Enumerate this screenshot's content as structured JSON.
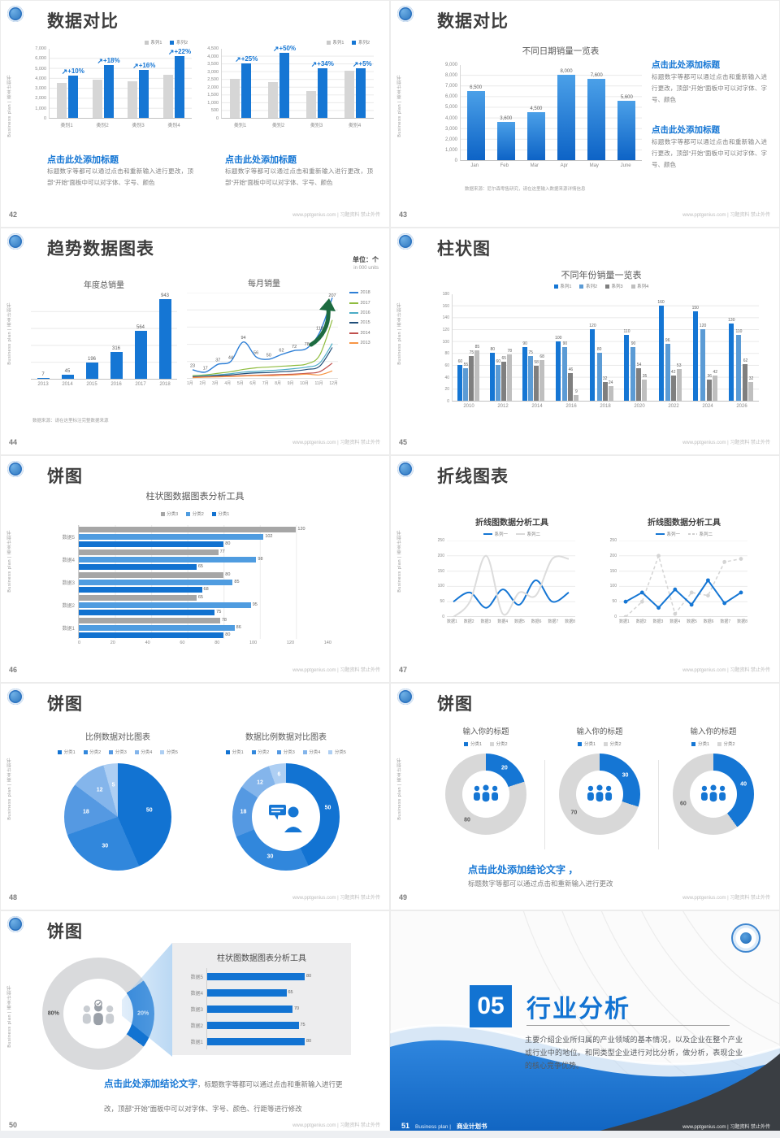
{
  "global": {
    "sidebar_text": "Business plan | 商业计划书",
    "footer_right": "www.pptgenius.com | 习题资料 禁止外传"
  },
  "s42": {
    "page": "42",
    "title": "数据对比",
    "legend": [
      {
        "label": "系列1",
        "color": "#c9c9c9",
        "type": "sq"
      },
      {
        "label": "系列2",
        "color": "#1576d4",
        "type": "sq"
      }
    ],
    "charts": [
      {
        "ymax": 7000,
        "yticks": [
          "7,000",
          "6,000",
          "5,000",
          "4,000",
          "3,000",
          "2,000",
          "1,000",
          "0"
        ],
        "categories": [
          "类别1",
          "类别2",
          "类别3",
          "类别4"
        ],
        "series": [
          {
            "name": "系列1",
            "color": "#d6d6d6",
            "values": [
              3500,
              3800,
              3700,
              4300
            ]
          },
          {
            "name": "系列2",
            "color": "#1576d4",
            "values": [
              4200,
              5300,
              4800,
              6200
            ]
          }
        ],
        "callouts": [
          "+10%",
          "+18%",
          "+16%",
          "+22%"
        ]
      },
      {
        "ymax": 4500,
        "yticks": [
          "4,500",
          "4,000",
          "3,500",
          "3,000",
          "2,500",
          "2,000",
          "1,500",
          "1,000",
          "500",
          "0"
        ],
        "categories": [
          "类别1",
          "类别2",
          "类别3",
          "类别4"
        ],
        "series": [
          {
            "name": "系列1",
            "color": "#d6d6d6",
            "values": [
              2500,
              2300,
              1750,
              3050
            ]
          },
          {
            "name": "系列2",
            "color": "#1576d4",
            "values": [
              3500,
              4200,
              3200,
              3200
            ]
          }
        ],
        "callouts": [
          "+25%",
          "+50%",
          "+34%",
          "+5%"
        ]
      }
    ],
    "blocks": [
      {
        "heading": "点击此处添加标题",
        "body": "标题数字等都可以通过点击和重新输入进行更改，顶部“开始”面板中可以对字体、字号、颜色"
      },
      {
        "heading": "点击此处添加标题",
        "body": "标题数字等都可以通过点击和重新输入进行更改，顶部“开始”面板中可以对字体、字号、颜色"
      }
    ]
  },
  "s43": {
    "page": "43",
    "title": "数据对比",
    "chart_title": "不同日期销量一览表",
    "chart": {
      "ymax": 9000,
      "yticks": [
        "9,000",
        "8,000",
        "7,000",
        "6,000",
        "5,000",
        "4,000",
        "3,000",
        "2,000",
        "1,000",
        "0"
      ],
      "categories": [
        "Jan",
        "Feb",
        "Mar",
        "Apr",
        "May",
        "June"
      ],
      "series": [
        {
          "name": "销量",
          "grad": [
            "#4ba0e8",
            "#0d63c6"
          ],
          "values": [
            6500,
            3600,
            4500,
            8000,
            7600,
            5600
          ],
          "labels": [
            "6,500",
            "3,600",
            "4,500",
            "8,000",
            "7,600",
            "5,600"
          ]
        }
      ]
    },
    "source": "数据来源：尼尔森零售研究，请在这里输入数据来源详情信息",
    "blocks": [
      {
        "heading": "点击此处添加标题",
        "body": "标题数字等都可以通过点击和重新输入进行更改，顶部“开始”面板中可以对字体、字号、颜色"
      },
      {
        "heading": "点击此处添加标题",
        "body": "标题数字等都可以通过点击和重新输入进行更改，顶部“开始”面板中可以对字体、字号、颜色"
      }
    ]
  },
  "s44": {
    "page": "44",
    "title": "趋势数据图表",
    "unit_cn": "单位：个",
    "unit_en": "in 000 units",
    "left": {
      "chart_title": "年度总销量",
      "chart": {
        "ymax": 1000,
        "categories": [
          "2013",
          "2014",
          "2015",
          "2016",
          "2017",
          "2018"
        ],
        "series": [
          {
            "name": "年度总销量",
            "color": "#1576d4",
            "values": [
              7,
              45,
              196,
              316,
              564,
              943
            ],
            "labels": [
              "7",
              "45",
              "196",
              "316",
              "564",
              "943"
            ]
          }
        ]
      }
    },
    "right": {
      "chart_title": "每月销量",
      "chart": {
        "ymax": 220,
        "xlabels": [
          "1月",
          "2月",
          "3月",
          "4月",
          "5月",
          "6月",
          "7月",
          "8月",
          "9月",
          "10月",
          "11月",
          "12月"
        ],
        "series": [
          {
            "name": "2018",
            "color": "#2e7fd6",
            "w": 1.4,
            "smooth": true,
            "values": [
              23,
              17,
              37,
              44,
              94,
              56,
              50,
              62,
              72,
              78,
              118,
              207
            ],
            "labels": [
              "23",
              "17",
              "37",
              "44",
              "94",
              "56",
              "50",
              "62",
              "72",
              "78",
              "118",
              "207"
            ]
          },
          {
            "name": "2017",
            "color": "#8fbc3f",
            "w": 1.2,
            "smooth": true,
            "values": [
              8,
              10,
              14,
              18,
              24,
              28,
              30,
              32,
              34,
              38,
              60,
              150
            ]
          },
          {
            "name": "2016",
            "color": "#4bacc6",
            "w": 1.2,
            "smooth": true,
            "values": [
              6,
              8,
              10,
              13,
              17,
              19,
              21,
              23,
              26,
              30,
              40,
              90
            ]
          },
          {
            "name": "2015",
            "color": "#1f4e79",
            "w": 1.2,
            "smooth": true,
            "values": [
              5,
              6,
              8,
              10,
              13,
              15,
              16,
              18,
              20,
              24,
              32,
              80
            ]
          },
          {
            "name": "2014",
            "color": "#c0504d",
            "w": 1.2,
            "smooth": true,
            "values": [
              4,
              5,
              6,
              7,
              8,
              9,
              10,
              11,
              12,
              14,
              18,
              40
            ]
          },
          {
            "name": "2013",
            "color": "#f79646",
            "w": 1.2,
            "smooth": true,
            "values": [
              3,
              4,
              5,
              6,
              7,
              8,
              8,
              9,
              10,
              12,
              10,
              20
            ]
          }
        ]
      },
      "legend": [
        {
          "label": "2018",
          "color": "#2e7fd6",
          "type": "line"
        },
        {
          "label": "2017",
          "color": "#8fbc3f",
          "type": "line"
        },
        {
          "label": "2016",
          "color": "#4bacc6",
          "type": "line"
        },
        {
          "label": "2015",
          "color": "#1f4e79",
          "type": "line"
        },
        {
          "label": "2014",
          "color": "#c0504d",
          "type": "line"
        },
        {
          "label": "2013",
          "color": "#f79646",
          "type": "line"
        }
      ]
    },
    "note": "数据来源：请在这里标注完整数据来源"
  },
  "s45": {
    "page": "45",
    "title": "柱状图",
    "chart_title": "不同年份销量一览表",
    "legend": [
      {
        "label": "系列1",
        "color": "#1576d4",
        "type": "sq"
      },
      {
        "label": "系列2",
        "color": "#5b9bd5",
        "type": "sq"
      },
      {
        "label": "系列3",
        "color": "#7f7f7f",
        "type": "sq"
      },
      {
        "label": "系列4",
        "color": "#bfbfbf",
        "type": "sq"
      }
    ],
    "chart": {
      "ymax": 180,
      "yticks": [
        "180",
        "160",
        "140",
        "120",
        "100",
        "80",
        "60",
        "40",
        "20",
        "0"
      ],
      "categories": [
        "2010",
        "2012",
        "2014",
        "2016",
        "2018",
        "2020",
        "2022",
        "2024",
        "2026"
      ],
      "series": [
        {
          "name": "系列1",
          "color": "#1576d4",
          "auto": true,
          "values": [
            60,
            80,
            90,
            100,
            120,
            110,
            160,
            150,
            130
          ]
        },
        {
          "name": "系列2",
          "color": "#5b9bd5",
          "auto": true,
          "values": [
            55,
            60,
            75,
            90,
            80,
            90,
            96,
            120,
            110
          ]
        },
        {
          "name": "系列3",
          "color": "#7f7f7f",
          "auto": true,
          "values": [
            75,
            65,
            58,
            46,
            32,
            54,
            42,
            36,
            62
          ]
        },
        {
          "name": "系列4",
          "color": "#bfbfbf",
          "auto": true,
          "values": [
            85,
            78,
            68,
            9,
            24,
            35,
            53,
            42,
            32
          ]
        }
      ]
    }
  },
  "s46": {
    "page": "46",
    "title": "饼图",
    "chart_title": "柱状图数据图表分析工具",
    "legend": [
      {
        "label": "分类3",
        "color": "#a6a6a6",
        "type": "sq"
      },
      {
        "label": "分类2",
        "color": "#4f9ce0",
        "type": "sq"
      },
      {
        "label": "分类1",
        "color": "#1272d0",
        "type": "sq"
      }
    ],
    "chart": {
      "xmax": 140,
      "xticks": [
        "0",
        "20",
        "40",
        "60",
        "80",
        "100",
        "120",
        "140"
      ],
      "categories": [
        "数据5",
        "数据4",
        "数据3",
        "数据2",
        "数据1"
      ],
      "series": [
        {
          "name": "分类3",
          "color": "#a6a6a6",
          "values": [
            120,
            77,
            80,
            65,
            78
          ]
        },
        {
          "name": "分类2",
          "color": "#4f9ce0",
          "values": [
            102,
            98,
            85,
            95,
            86
          ]
        },
        {
          "name": "分类1",
          "color": "#1272d0",
          "values": [
            80,
            65,
            68,
            75,
            80
          ]
        }
      ]
    }
  },
  "s47": {
    "page": "47",
    "title": "折线图表",
    "charts": [
      {
        "chart_title": "折线图数据分析工具",
        "legend": [
          {
            "label": "系列一",
            "color": "#1576d4",
            "type": "line"
          },
          {
            "label": "系列二",
            "color": "#d9d9d9",
            "type": "line"
          }
        ],
        "data": {
          "ymax": 250,
          "yticks": [
            "250",
            "200",
            "150",
            "100",
            "50",
            "0"
          ],
          "xlabels": [
            "数据1",
            "数据2",
            "数据3",
            "数据4",
            "数据5",
            "数据6",
            "数据7",
            "数据8"
          ],
          "series": [
            {
              "name": "系列一",
              "color": "#1576d4",
              "w": 2,
              "smooth": true,
              "values": [
                50,
                80,
                30,
                90,
                40,
                120,
                50,
                80
              ]
            },
            {
              "name": "系列二",
              "color": "#dcdcdc",
              "w": 2,
              "smooth": true,
              "values": [
                0,
                50,
                200,
                10,
                80,
                70,
                190,
                190
              ]
            }
          ]
        }
      },
      {
        "chart_title": "折线图数据分析工具",
        "legend": [
          {
            "label": "系列一",
            "color": "#1576d4",
            "type": "line"
          },
          {
            "label": "系列二",
            "color": "#cfcfcf",
            "type": "dash"
          }
        ],
        "data": {
          "ymax": 250,
          "yticks": [
            "250",
            "200",
            "150",
            "100",
            "50",
            "0"
          ],
          "xlabels": [
            "数据1",
            "数据2",
            "数据3",
            "数据4",
            "数据5",
            "数据6",
            "数据7",
            "数据8"
          ],
          "series": [
            {
              "name": "系列二",
              "color": "#d4d4d4",
              "w": 1.5,
              "dash": "4 3",
              "dots": true,
              "values": [
                0,
                50,
                200,
                10,
                80,
                70,
                180,
                190
              ]
            },
            {
              "name": "系列一",
              "color": "#1576d4",
              "w": 2,
              "dots": true,
              "values": [
                50,
                80,
                30,
                90,
                40,
                120,
                45,
                80
              ]
            }
          ]
        }
      }
    ]
  },
  "s48": {
    "page": "48",
    "title": "饼图",
    "legend": [
      {
        "label": "分类1",
        "color": "#1273d2",
        "type": "sq"
      },
      {
        "label": "分类2",
        "color": "#3187dc",
        "type": "sq"
      },
      {
        "label": "分类3",
        "color": "#5599e2",
        "type": "sq"
      },
      {
        "label": "分类4",
        "color": "#84b5eb",
        "type": "sq"
      },
      {
        "label": "分类5",
        "color": "#aecff3",
        "type": "sq"
      }
    ],
    "left": {
      "chart_title": "比例数据对比图表",
      "pie": {
        "values": [
          50,
          30,
          18,
          12,
          5
        ],
        "colors": [
          "#1273d2",
          "#3187dc",
          "#5599e2",
          "#84b5eb",
          "#aecff3"
        ],
        "labels": [
          "50",
          "30",
          "18",
          "12",
          "5"
        ]
      }
    },
    "right": {
      "chart_title": "数据比例数据对比图表",
      "pie": {
        "values": [
          50,
          30,
          18,
          12,
          6
        ],
        "colors": [
          "#1273d2",
          "#3187dc",
          "#5599e2",
          "#84b5eb",
          "#aecff3"
        ],
        "labels": [
          "50",
          "30",
          "18",
          "12",
          "6"
        ]
      }
    }
  },
  "s49": {
    "page": "49",
    "title": "饼图",
    "charts": [
      {
        "chart_title": "输入你的标题",
        "legend": [
          {
            "label": "分类1",
            "color": "#1576d4",
            "type": "sq"
          },
          {
            "label": "分类2",
            "color": "#d6d6d6",
            "type": "sq"
          }
        ],
        "pie": {
          "values": [
            20,
            80
          ],
          "colors": [
            "#1576d4",
            "#d8d8d8"
          ],
          "labels": [
            "20",
            "80"
          ],
          "labelColors": [
            "#ffffff",
            "#595959"
          ]
        }
      },
      {
        "chart_title": "输入你的标题",
        "legend": [
          {
            "label": "分类1",
            "color": "#1576d4",
            "type": "sq"
          },
          {
            "label": "分类2",
            "color": "#d6d6d6",
            "type": "sq"
          }
        ],
        "pie": {
          "values": [
            30,
            70
          ],
          "colors": [
            "#1576d4",
            "#d8d8d8"
          ],
          "labels": [
            "30",
            "70"
          ],
          "labelColors": [
            "#ffffff",
            "#595959"
          ]
        }
      },
      {
        "chart_title": "输入你的标题",
        "legend": [
          {
            "label": "分类1",
            "color": "#1576d4",
            "type": "sq"
          },
          {
            "label": "分类2",
            "color": "#d6d6d6",
            "type": "sq"
          }
        ],
        "pie": {
          "values": [
            40,
            60
          ],
          "colors": [
            "#1576d4",
            "#d8d8d8"
          ],
          "labels": [
            "40",
            "60"
          ],
          "labelColors": [
            "#ffffff",
            "#595959"
          ]
        }
      }
    ],
    "conclusion_heading": "点击此处添加结论文字 ，",
    "conclusion_body": "标题数字等都可以通过点击和重新输入进行更改"
  },
  "s50": {
    "page": "50",
    "title": "饼图",
    "pie": {
      "from": 54,
      "values": [
        20,
        80
      ],
      "colors": [
        "#1273d2",
        "#d9dadc"
      ],
      "labels": [
        "20%",
        "80%"
      ],
      "labelColors": [
        "#ffffff",
        "#4a4a4a"
      ]
    },
    "panel_title": "柱状图数据图表分析工具",
    "bars": {
      "xmax": 100,
      "categories": [
        "数据5",
        "数据4",
        "数据3",
        "数据2",
        "数据1"
      ],
      "series": [
        {
          "name": "数值",
          "color": "#1273d2",
          "values": [
            80,
            65,
            70,
            75,
            80
          ]
        }
      ]
    },
    "conclusion_heading": "点击此处添加结论文字",
    "conclusion_body": "，标题数字等都可以通过点击和重新输入进行更改，顶部“开始”面板中可以对字体、字号、颜色、行距等进行修改"
  },
  "s51": {
    "page": "51",
    "number": "05",
    "title": "行业分析",
    "body": "主要介绍企业所归属的产业领域的基本情况，以及企业在整个产业或行业中的地位。和同类型企业进行对比分析，做分析，表现企业的核心竞争优势。",
    "footer_label": "Business plan |",
    "footer_book": "商业计划书"
  }
}
